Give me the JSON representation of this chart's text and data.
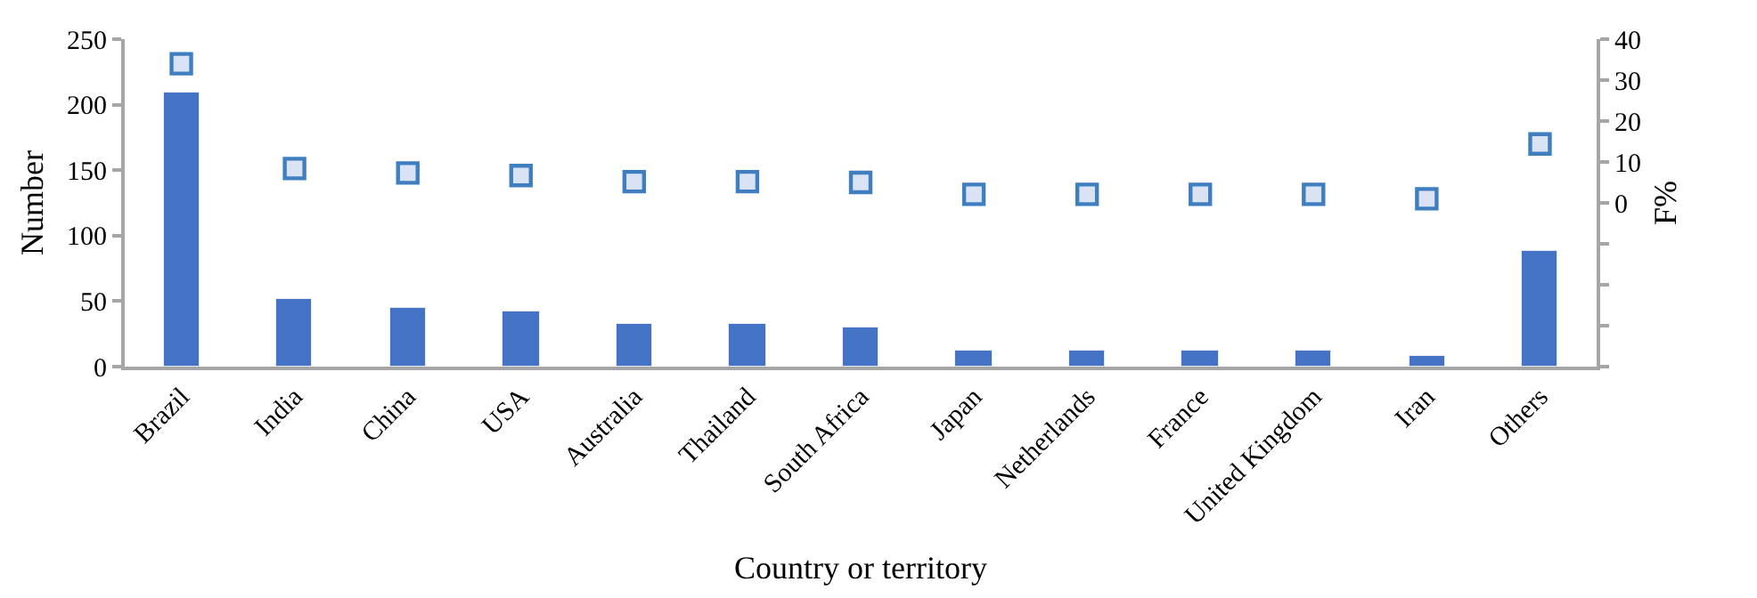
{
  "chart_data": {
    "type": "bar",
    "xlabel": "Country or territory",
    "ylabel": "Number",
    "y2label": "F%",
    "categories": [
      "Brazil",
      "India",
      "China",
      "USA",
      "Australia",
      "Thailand",
      "South Africa",
      "Japan",
      "Netherlands",
      "France",
      "United Kingdom",
      "Iran",
      "Others"
    ],
    "series": [
      {
        "color": "#4472c4",
        "values": [
          209,
          51,
          45,
          42,
          32,
          33,
          30,
          12,
          12,
          12,
          12,
          8,
          89
        ]
      },
      {
        "type": "scatter",
        "axis": "y2",
        "marker": "square",
        "color": "#dae3f3",
        "values": [
          34,
          8.4,
          7.3,
          6.7,
          5.2,
          5.2,
          5,
          2.1,
          2.1,
          2.1,
          2.1,
          1,
          14.4
        ]
      }
    ],
    "ylim": [
      0,
      250
    ],
    "yticks": [
      0,
      50,
      100,
      150,
      200,
      250
    ],
    "y2lim": [
      -40,
      40
    ],
    "y2ticks": [
      {
        "value": -40,
        "label": null
      },
      {
        "value": -30,
        "label": null
      },
      {
        "value": -20,
        "label": null
      },
      {
        "value": -10,
        "label": null
      },
      0,
      10,
      20,
      30,
      40
    ]
  }
}
